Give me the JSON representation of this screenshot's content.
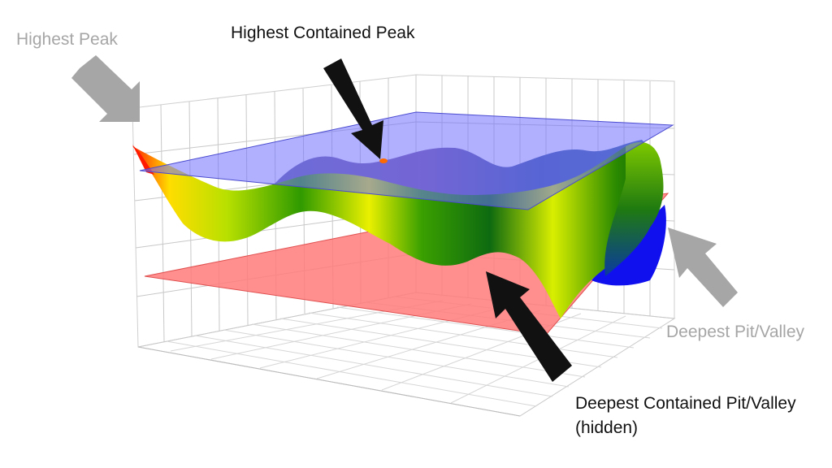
{
  "colors": {
    "callout_primary": "#111111",
    "callout_secondary": "#a6a6a6",
    "upper_plane": "#6f6fff",
    "lower_plane": "#ff7a7a",
    "surface_high": "#ff1a00",
    "surface_mid": "#ffee00",
    "surface_low": "#00aa00",
    "surface_deep": "#0000ff"
  },
  "labels": {
    "highest_peak": "Highest Peak",
    "highest_contained_peak": "Highest Contained Peak",
    "deepest_pit": "Deepest Pit/Valley",
    "deepest_contained_line1": "Deepest Contained Pit/Valley",
    "deepest_contained_line2": "(hidden)"
  }
}
